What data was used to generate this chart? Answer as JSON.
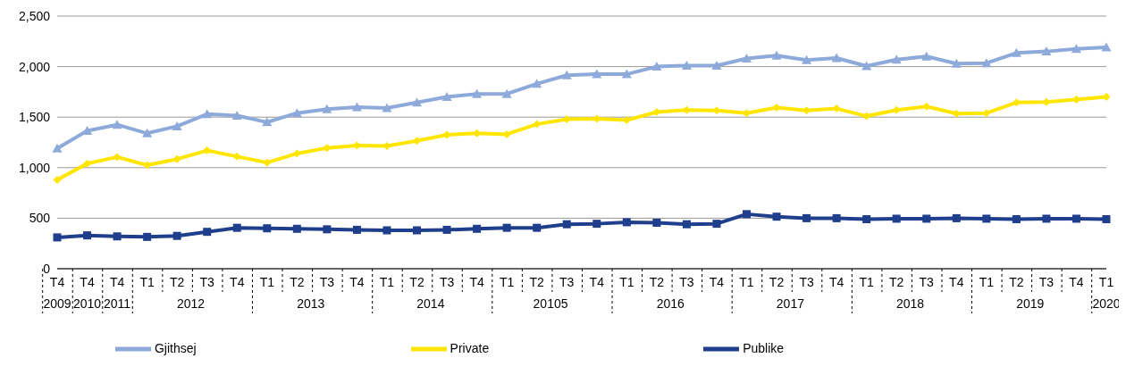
{
  "chart_data": {
    "type": "line",
    "categories": [
      "T4",
      "T4",
      "T4",
      "T1",
      "T2",
      "T3",
      "T4",
      "T1",
      "T2",
      "T3",
      "T4",
      "T1",
      "T2",
      "T3",
      "T4",
      "T1",
      "T2",
      "T3",
      "T4",
      "T1",
      "T2",
      "T3",
      "T4",
      "T1",
      "T2",
      "T3",
      "T4",
      "T1",
      "T2",
      "T3",
      "T4",
      "T1",
      "T2",
      "T3",
      "T4",
      "T1"
    ],
    "annotations": [
      "2009",
      "2010",
      "2011",
      "2012",
      "2013",
      "2014",
      "20105",
      "2016",
      "2017",
      "2018",
      "2019",
      "2020"
    ],
    "series": [
      {
        "name": "Publike",
        "color": "#1f3e8c",
        "marker": "square",
        "values": [
          310,
          330,
          320,
          315,
          325,
          365,
          405,
          400,
          395,
          390,
          385,
          380,
          380,
          385,
          395,
          405,
          405,
          440,
          445,
          460,
          455,
          440,
          445,
          540,
          515,
          500,
          500,
          490,
          495,
          495,
          500,
          495,
          490,
          495,
          495,
          490
        ]
      },
      {
        "name": "Private",
        "color": "#ffe600",
        "marker": "diamond",
        "values": [
          880,
          1040,
          1105,
          1025,
          1085,
          1170,
          1110,
          1050,
          1140,
          1195,
          1220,
          1215,
          1265,
          1325,
          1340,
          1330,
          1430,
          1480,
          1485,
          1470,
          1550,
          1570,
          1565,
          1540,
          1595,
          1565,
          1585,
          1510,
          1570,
          1605,
          1535,
          1540,
          1645,
          1650,
          1675,
          1700
        ]
      },
      {
        "name": "Gjithsej",
        "color": "#8eaadb",
        "marker": "triangle",
        "values": [
          1190,
          1365,
          1425,
          1340,
          1410,
          1530,
          1515,
          1450,
          1540,
          1580,
          1600,
          1590,
          1645,
          1700,
          1730,
          1730,
          1830,
          1915,
          1925,
          1925,
          2000,
          2010,
          2010,
          2080,
          2110,
          2065,
          2085,
          2005,
          2070,
          2100,
          2030,
          2035,
          2135,
          2150,
          2175,
          2190
        ]
      }
    ],
    "ylim": [
      0,
      2500
    ],
    "yticks": [
      0,
      {
        "value": 500,
        "label": "500"
      },
      {
        "value": 1000,
        "label": "1,000"
      },
      {
        "value": 1500,
        "label": "1,500"
      },
      {
        "value": 2000,
        "label": "2,000"
      },
      {
        "value": 2500,
        "label": "2,500"
      }
    ],
    "grid": "y",
    "legend": "bottom"
  }
}
